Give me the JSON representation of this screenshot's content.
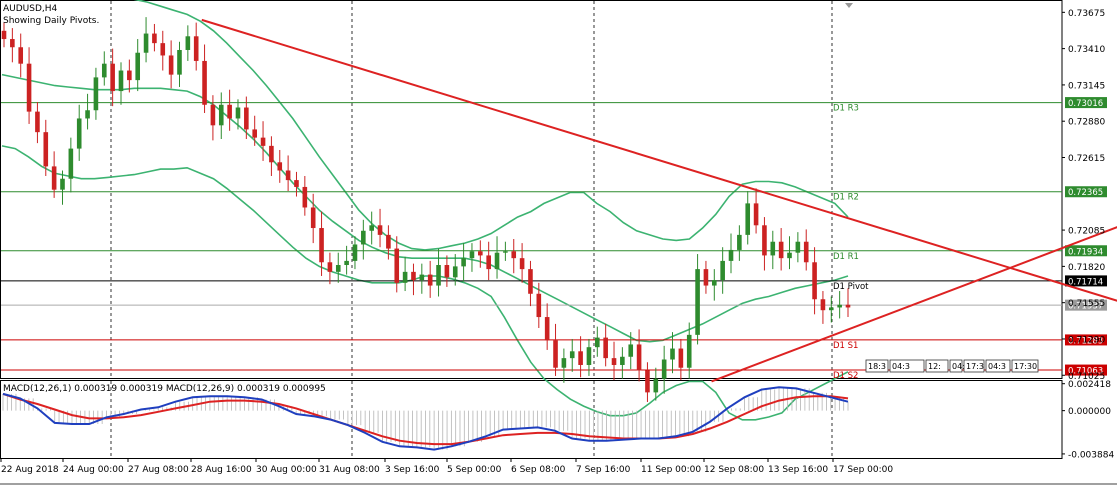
{
  "chart_data": {
    "type": "candlestick",
    "symbol_title": "AUDUSD,H4",
    "subtitle": "Showing Daily Pivots.",
    "y_range": [
      0.71005,
      0.73765
    ],
    "price_ticks": [
      "0.73675",
      "0.73410",
      "0.73145",
      "0.72880",
      "0.72615",
      "0.72085",
      "0.71820",
      "0.71555",
      "0.71290",
      "0.71025"
    ],
    "current_price": "0.71537",
    "pivot_levels": [
      {
        "name": "D1 R3",
        "value": 0.73016,
        "label": "0.73016",
        "color": "#2e8b2e"
      },
      {
        "name": "D1 R2",
        "value": 0.72365,
        "label": "0.72365",
        "color": "#2e8b2e"
      },
      {
        "name": "D1 R1",
        "value": 0.71934,
        "label": "0.71934",
        "color": "#2e8b2e"
      },
      {
        "name": "D1 Pivot",
        "value": 0.71714,
        "label": "0.71714",
        "color": "#000000"
      },
      {
        "name": "D1 S1",
        "value": 0.71283,
        "label": "0.71283",
        "color": "#cc0000"
      },
      {
        "name": "D1 S2",
        "value": 0.71063,
        "label": "0.71063",
        "color": "#cc0000"
      }
    ],
    "time_labels": [
      "22 Aug 2018",
      "24 Aug 00:00",
      "27 Aug 08:00",
      "28 Aug 16:00",
      "30 Aug 00:00",
      "31 Aug 08:00",
      "3 Sep 16:00",
      "5 Sep 00:00",
      "6 Sep 08:00",
      "7 Sep 16:00",
      "11 Sep 00:00",
      "12 Sep 08:00",
      "13 Sep 16:00",
      "17 Sep 00:00"
    ],
    "trendlines": [
      {
        "from": [
          0.19,
          0.7362
        ],
        "to": [
          1.06,
          0.7155
        ]
      },
      {
        "from": [
          0.67,
          0.7098
        ],
        "to": [
          1.06,
          0.7213
        ]
      }
    ],
    "closes": [
      0.7348,
      0.7342,
      0.733,
      0.7295,
      0.728,
      0.7255,
      0.7238,
      0.7246,
      0.7268,
      0.729,
      0.7296,
      0.732,
      0.733,
      0.731,
      0.7325,
      0.7318,
      0.7338,
      0.7352,
      0.7345,
      0.7336,
      0.7322,
      0.734,
      0.735,
      0.7332,
      0.73,
      0.7285,
      0.73,
      0.729,
      0.7298,
      0.7282,
      0.7276,
      0.727,
      0.7258,
      0.7252,
      0.7245,
      0.724,
      0.7225,
      0.721,
      0.7185,
      0.7178,
      0.7183,
      0.7186,
      0.7198,
      0.7208,
      0.7212,
      0.7205,
      0.7195,
      0.717,
      0.7178,
      0.7172,
      0.7176,
      0.7168,
      0.7183,
      0.7174,
      0.7182,
      0.7188,
      0.7193,
      0.719,
      0.718,
      0.7192,
      0.7193,
      0.7188,
      0.718,
      0.7162,
      0.7145,
      0.7128,
      0.7108,
      0.7115,
      0.712,
      0.711,
      0.7123,
      0.713,
      0.7115,
      0.711,
      0.7116,
      0.7125,
      0.7106,
      0.709,
      0.71,
      0.7114,
      0.7122,
      0.7108,
      0.7132,
      0.718,
      0.7168,
      0.7172,
      0.7186,
      0.7194,
      0.7205,
      0.7228,
      0.7212,
      0.719,
      0.72,
      0.7188,
      0.7192,
      0.72,
      0.7185,
      0.7158,
      0.715,
      0.7152,
      0.7154,
      0.7152
    ],
    "bollinger_upper": [
      0.7378,
      0.7378,
      0.7377,
      0.7377,
      0.7378,
      0.7379,
      0.738,
      0.738,
      0.738,
      0.7379,
      0.7377,
      0.7375,
      0.7372,
      0.7369,
      0.7366,
      0.7361,
      0.7354,
      0.7345,
      0.7335,
      0.7325,
      0.7314,
      0.7302,
      0.729,
      0.7276,
      0.7262,
      0.7249,
      0.7236,
      0.7223,
      0.7213,
      0.7205,
      0.7199,
      0.7195,
      0.7194,
      0.7195,
      0.7197,
      0.7199,
      0.7202,
      0.7206,
      0.7212,
      0.7218,
      0.7222,
      0.7228,
      0.7232,
      0.7236,
      0.7236,
      0.7228,
      0.7222,
      0.7214,
      0.7208,
      0.7205,
      0.7202,
      0.7201,
      0.7202,
      0.721,
      0.722,
      0.7233,
      0.7242,
      0.7244,
      0.7244,
      0.7243,
      0.724,
      0.7236,
      0.7232,
      0.7228,
      0.7218
    ],
    "bollinger_middle": [
      0.7322,
      0.732,
      0.7318,
      0.7316,
      0.7314,
      0.7313,
      0.7312,
      0.7311,
      0.7311,
      0.7311,
      0.7312,
      0.7312,
      0.7312,
      0.7311,
      0.731,
      0.7306,
      0.73,
      0.7292,
      0.7284,
      0.7275,
      0.7265,
      0.7254,
      0.7243,
      0.7233,
      0.7223,
      0.7215,
      0.7208,
      0.7201,
      0.7196,
      0.7192,
      0.7189,
      0.7188,
      0.7188,
      0.7188,
      0.7188,
      0.7188,
      0.7186,
      0.7183,
      0.7178,
      0.7173,
      0.7168,
      0.7163,
      0.7158,
      0.7153,
      0.7148,
      0.7143,
      0.7138,
      0.7133,
      0.7128,
      0.7127,
      0.7128,
      0.7132,
      0.7136,
      0.714,
      0.7145,
      0.715,
      0.7155,
      0.7158,
      0.716,
      0.7163,
      0.7166,
      0.7168,
      0.717,
      0.7172,
      0.7175
    ],
    "bollinger_lower": [
      0.727,
      0.7268,
      0.7262,
      0.7255,
      0.725,
      0.7248,
      0.7246,
      0.7246,
      0.7247,
      0.7248,
      0.7249,
      0.7251,
      0.7253,
      0.7253,
      0.7254,
      0.725,
      0.7246,
      0.7239,
      0.7231,
      0.7223,
      0.7214,
      0.7205,
      0.7196,
      0.7188,
      0.7182,
      0.7178,
      0.7175,
      0.7172,
      0.717,
      0.717,
      0.717,
      0.7172,
      0.7175,
      0.7175,
      0.7173,
      0.717,
      0.7166,
      0.716,
      0.7145,
      0.7128,
      0.7112,
      0.71,
      0.7092,
      0.7085,
      0.708,
      0.7076,
      0.7073,
      0.7073,
      0.7075,
      0.7082,
      0.709,
      0.7095,
      0.7098,
      0.7098,
      0.709,
      0.7075,
      0.707,
      0.707,
      0.7072,
      0.7075,
      0.7085,
      0.709,
      0.7095,
      0.71,
      0.7105
    ],
    "macd": {
      "label": "MACD(12,26,1) 0.000319 0.000319 MACD(12,26,9) 0.000319 0.000995",
      "y_range": [
        -0.00425,
        0.00275
      ],
      "ticks": [
        "0.002418",
        "0.000000",
        "-0.003884"
      ],
      "macd_line": [
        0.0015,
        0.0011,
        0.0002,
        -0.0011,
        -0.0012,
        -0.0012,
        -0.0006,
        -0.0003,
        0.0001,
        0.0003,
        0.0008,
        0.0012,
        0.0013,
        0.0013,
        0.0012,
        0.001,
        0.0004,
        -0.0003,
        -0.0005,
        -0.0008,
        -0.0013,
        -0.002,
        -0.0028,
        -0.0032,
        -0.0033,
        -0.0035,
        -0.0032,
        -0.0028,
        -0.0023,
        -0.0017,
        -0.0016,
        -0.0015,
        -0.0018,
        -0.0025,
        -0.0027,
        -0.0027,
        -0.0026,
        -0.0025,
        -0.0025,
        -0.0023,
        -0.0019,
        -0.001,
        0.0002,
        0.0012,
        0.0019,
        0.0021,
        0.002,
        0.0016,
        0.0012,
        0.0008
      ],
      "signal_line": [
        0.0015,
        0.001,
        0.0006,
        0.0001,
        -0.0004,
        -0.0007,
        -0.0007,
        -0.0006,
        -0.0004,
        -0.0001,
        0.0002,
        0.0005,
        0.0008,
        0.0009,
        0.0009,
        0.0008,
        0.0006,
        0.0002,
        -0.0003,
        -0.0008,
        -0.0013,
        -0.0018,
        -0.0023,
        -0.0027,
        -0.0029,
        -0.003,
        -0.003,
        -0.0028,
        -0.0025,
        -0.0022,
        -0.0021,
        -0.002,
        -0.002,
        -0.0021,
        -0.0023,
        -0.0024,
        -0.0025,
        -0.0025,
        -0.0025,
        -0.0024,
        -0.0021,
        -0.0016,
        -0.001,
        -0.0003,
        0.0004,
        0.0009,
        0.0012,
        0.0013,
        0.0013,
        0.0011
      ]
    },
    "scroll_labels": [
      "18:3",
      "04:3",
      "12:",
      "04:3",
      "17:3",
      "04:3",
      "17:30"
    ],
    "colors": {
      "bull": "#2e8b2e",
      "bear": "#cc2222",
      "band": "#3cb371",
      "trend": "#dd2222",
      "macd_line": "#1f3fbf",
      "signal_line": "#dd2222",
      "hist": "#b4b4b4"
    }
  }
}
